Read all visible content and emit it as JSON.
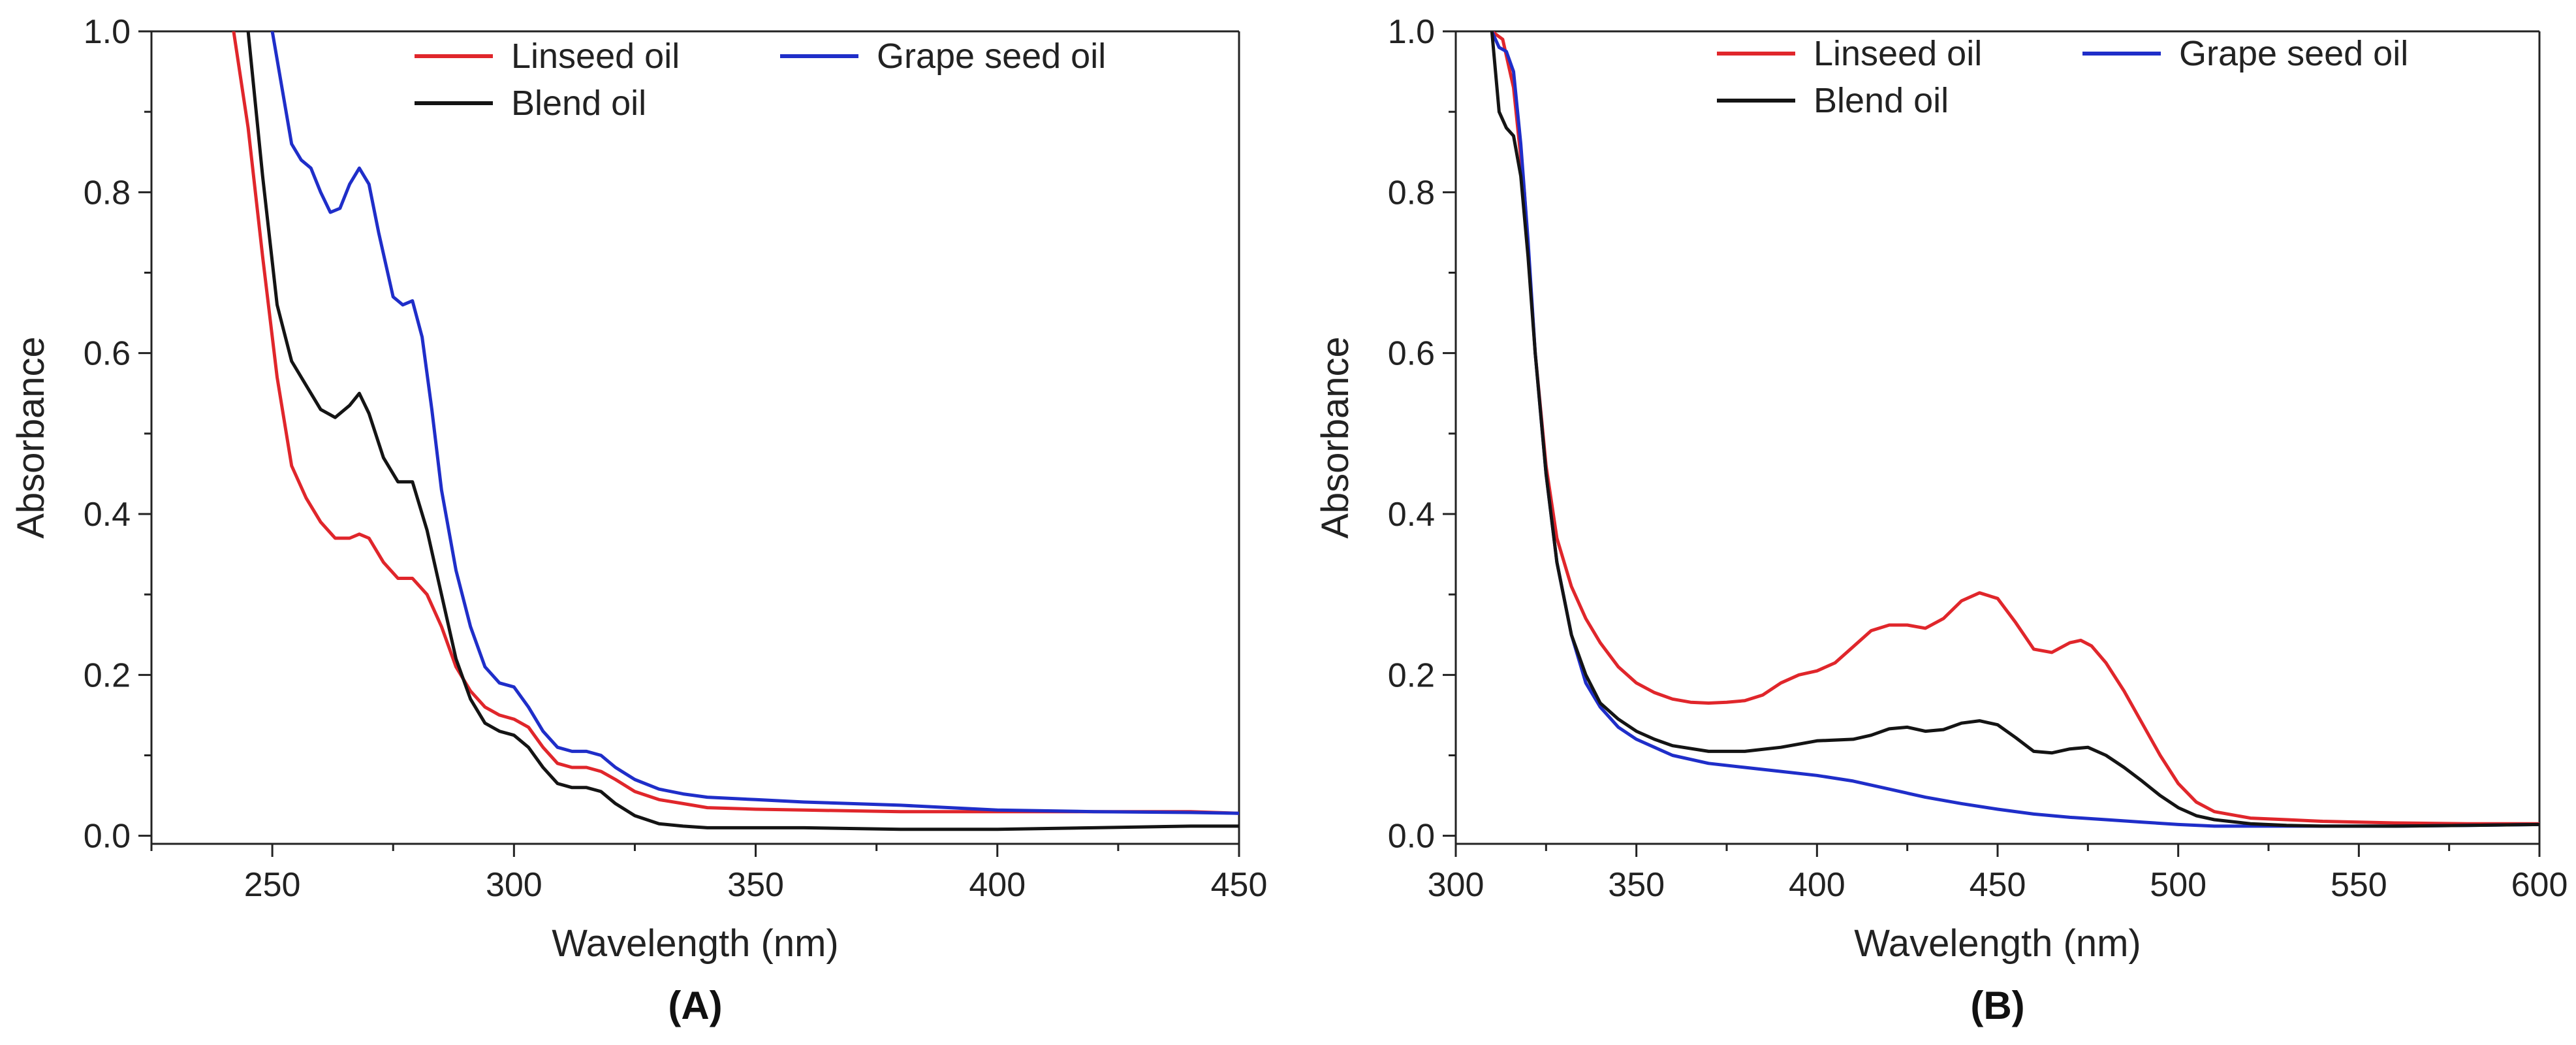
{
  "chart_data": [
    {
      "type": "line",
      "panel_label": "(A)",
      "xlabel": "Wavelength (nm)",
      "ylabel": "Absorbance",
      "xlim": [
        225,
        450
      ],
      "ylim": [
        -0.01,
        1.0
      ],
      "xticks": [
        250,
        300,
        350,
        400,
        450
      ],
      "yticks": [
        0.0,
        0.2,
        0.4,
        0.6,
        0.8,
        1.0
      ],
      "ytick_labels": [
        "0.0",
        "0.2",
        "0.4",
        "0.6",
        "0.8",
        "1.0"
      ],
      "grid": false,
      "legend_position": "top",
      "series": [
        {
          "name": "Linseed oil",
          "color": "#e0262b",
          "x": [
            242,
            245,
            248,
            251,
            254,
            257,
            260,
            263,
            266,
            268,
            270,
            273,
            276,
            279,
            282,
            285,
            288,
            291,
            294,
            297,
            300,
            303,
            306,
            309,
            312,
            315,
            318,
            321,
            325,
            330,
            335,
            340,
            350,
            360,
            380,
            400,
            420,
            440,
            450
          ],
          "y": [
            1.0,
            0.88,
            0.72,
            0.57,
            0.46,
            0.42,
            0.39,
            0.37,
            0.37,
            0.375,
            0.37,
            0.34,
            0.32,
            0.32,
            0.3,
            0.26,
            0.21,
            0.18,
            0.16,
            0.15,
            0.145,
            0.135,
            0.11,
            0.09,
            0.085,
            0.085,
            0.08,
            0.07,
            0.055,
            0.045,
            0.04,
            0.035,
            0.033,
            0.032,
            0.03,
            0.03,
            0.03,
            0.03,
            0.028
          ]
        },
        {
          "name": "Grape seed oil",
          "color": "#1f2ec9",
          "x": [
            250,
            252,
            254,
            256,
            258,
            260,
            262,
            264,
            266,
            268,
            270,
            272,
            275,
            277,
            279,
            281,
            283,
            285,
            288,
            291,
            294,
            297,
            300,
            303,
            306,
            309,
            312,
            315,
            318,
            321,
            325,
            330,
            335,
            340,
            350,
            360,
            380,
            400,
            420,
            440,
            450
          ],
          "y": [
            1.0,
            0.93,
            0.86,
            0.84,
            0.83,
            0.8,
            0.775,
            0.78,
            0.81,
            0.83,
            0.81,
            0.75,
            0.67,
            0.66,
            0.665,
            0.62,
            0.53,
            0.43,
            0.33,
            0.26,
            0.21,
            0.19,
            0.185,
            0.16,
            0.13,
            0.11,
            0.105,
            0.105,
            0.1,
            0.085,
            0.07,
            0.058,
            0.052,
            0.048,
            0.045,
            0.042,
            0.038,
            0.032,
            0.03,
            0.029,
            0.028
          ]
        },
        {
          "name": "Blend oil",
          "color": "#141414",
          "x": [
            245,
            248,
            251,
            254,
            257,
            260,
            263,
            266,
            268,
            270,
            273,
            276,
            279,
            282,
            285,
            288,
            291,
            294,
            297,
            300,
            303,
            306,
            309,
            312,
            315,
            318,
            321,
            325,
            330,
            335,
            340,
            350,
            360,
            380,
            400,
            420,
            440,
            450
          ],
          "y": [
            1.0,
            0.82,
            0.66,
            0.59,
            0.56,
            0.53,
            0.52,
            0.535,
            0.55,
            0.525,
            0.47,
            0.44,
            0.44,
            0.38,
            0.3,
            0.22,
            0.17,
            0.14,
            0.13,
            0.125,
            0.11,
            0.085,
            0.065,
            0.06,
            0.06,
            0.055,
            0.04,
            0.025,
            0.015,
            0.012,
            0.01,
            0.01,
            0.01,
            0.008,
            0.008,
            0.01,
            0.012,
            0.012
          ]
        }
      ]
    },
    {
      "type": "line",
      "panel_label": "(B)",
      "xlabel": "Wavelength (nm)",
      "ylabel": "Absorbance",
      "xlim": [
        300,
        600
      ],
      "ylim": [
        -0.01,
        1.0
      ],
      "xticks": [
        300,
        350,
        400,
        450,
        500,
        550,
        600
      ],
      "yticks": [
        0.0,
        0.2,
        0.4,
        0.6,
        0.8,
        1.0
      ],
      "ytick_labels": [
        "0.0",
        "0.2",
        "0.4",
        "0.6",
        "0.8",
        "1.0"
      ],
      "grid": false,
      "legend_position": "top",
      "series": [
        {
          "name": "Linseed oil",
          "color": "#e0262b",
          "x": [
            310,
            313,
            316,
            319,
            322,
            325,
            328,
            332,
            336,
            340,
            345,
            350,
            355,
            360,
            365,
            370,
            375,
            380,
            385,
            390,
            395,
            400,
            405,
            410,
            415,
            420,
            425,
            430,
            435,
            440,
            445,
            450,
            455,
            460,
            465,
            470,
            473,
            476,
            480,
            485,
            490,
            495,
            500,
            505,
            510,
            520,
            530,
            540,
            560,
            580,
            600
          ],
          "y": [
            1.0,
            0.99,
            0.93,
            0.8,
            0.6,
            0.46,
            0.37,
            0.31,
            0.27,
            0.24,
            0.21,
            0.19,
            0.178,
            0.17,
            0.166,
            0.165,
            0.166,
            0.168,
            0.175,
            0.19,
            0.2,
            0.205,
            0.215,
            0.235,
            0.255,
            0.262,
            0.262,
            0.258,
            0.27,
            0.292,
            0.302,
            0.295,
            0.265,
            0.232,
            0.228,
            0.24,
            0.243,
            0.236,
            0.215,
            0.18,
            0.14,
            0.1,
            0.065,
            0.042,
            0.03,
            0.022,
            0.02,
            0.018,
            0.016,
            0.015,
            0.015
          ]
        },
        {
          "name": "Grape seed oil",
          "color": "#1f2ec9",
          "x": [
            310,
            312,
            314,
            316,
            318,
            320,
            322,
            325,
            328,
            332,
            336,
            340,
            345,
            350,
            355,
            360,
            370,
            380,
            390,
            400,
            410,
            420,
            430,
            440,
            450,
            460,
            470,
            480,
            490,
            500,
            510,
            520,
            540,
            560,
            580,
            600
          ],
          "y": [
            1.0,
            0.98,
            0.975,
            0.95,
            0.86,
            0.74,
            0.6,
            0.45,
            0.34,
            0.25,
            0.19,
            0.16,
            0.135,
            0.12,
            0.11,
            0.1,
            0.09,
            0.085,
            0.08,
            0.075,
            0.068,
            0.058,
            0.048,
            0.04,
            0.033,
            0.027,
            0.023,
            0.02,
            0.017,
            0.014,
            0.012,
            0.012,
            0.012,
            0.012,
            0.013,
            0.014
          ]
        },
        {
          "name": "Blend oil",
          "color": "#141414",
          "x": [
            310,
            312,
            314,
            316,
            318,
            320,
            322,
            325,
            328,
            332,
            336,
            340,
            345,
            350,
            355,
            360,
            370,
            380,
            390,
            400,
            410,
            415,
            420,
            425,
            430,
            435,
            440,
            445,
            450,
            455,
            460,
            465,
            470,
            475,
            480,
            485,
            490,
            495,
            500,
            505,
            510,
            520,
            530,
            540,
            560,
            580,
            600
          ],
          "y": [
            1.0,
            0.9,
            0.88,
            0.87,
            0.82,
            0.72,
            0.6,
            0.45,
            0.34,
            0.25,
            0.2,
            0.165,
            0.145,
            0.13,
            0.12,
            0.112,
            0.105,
            0.105,
            0.11,
            0.118,
            0.12,
            0.125,
            0.133,
            0.135,
            0.13,
            0.132,
            0.14,
            0.143,
            0.138,
            0.122,
            0.105,
            0.103,
            0.108,
            0.11,
            0.1,
            0.085,
            0.068,
            0.05,
            0.035,
            0.025,
            0.02,
            0.015,
            0.013,
            0.012,
            0.012,
            0.013,
            0.014
          ]
        }
      ]
    }
  ]
}
